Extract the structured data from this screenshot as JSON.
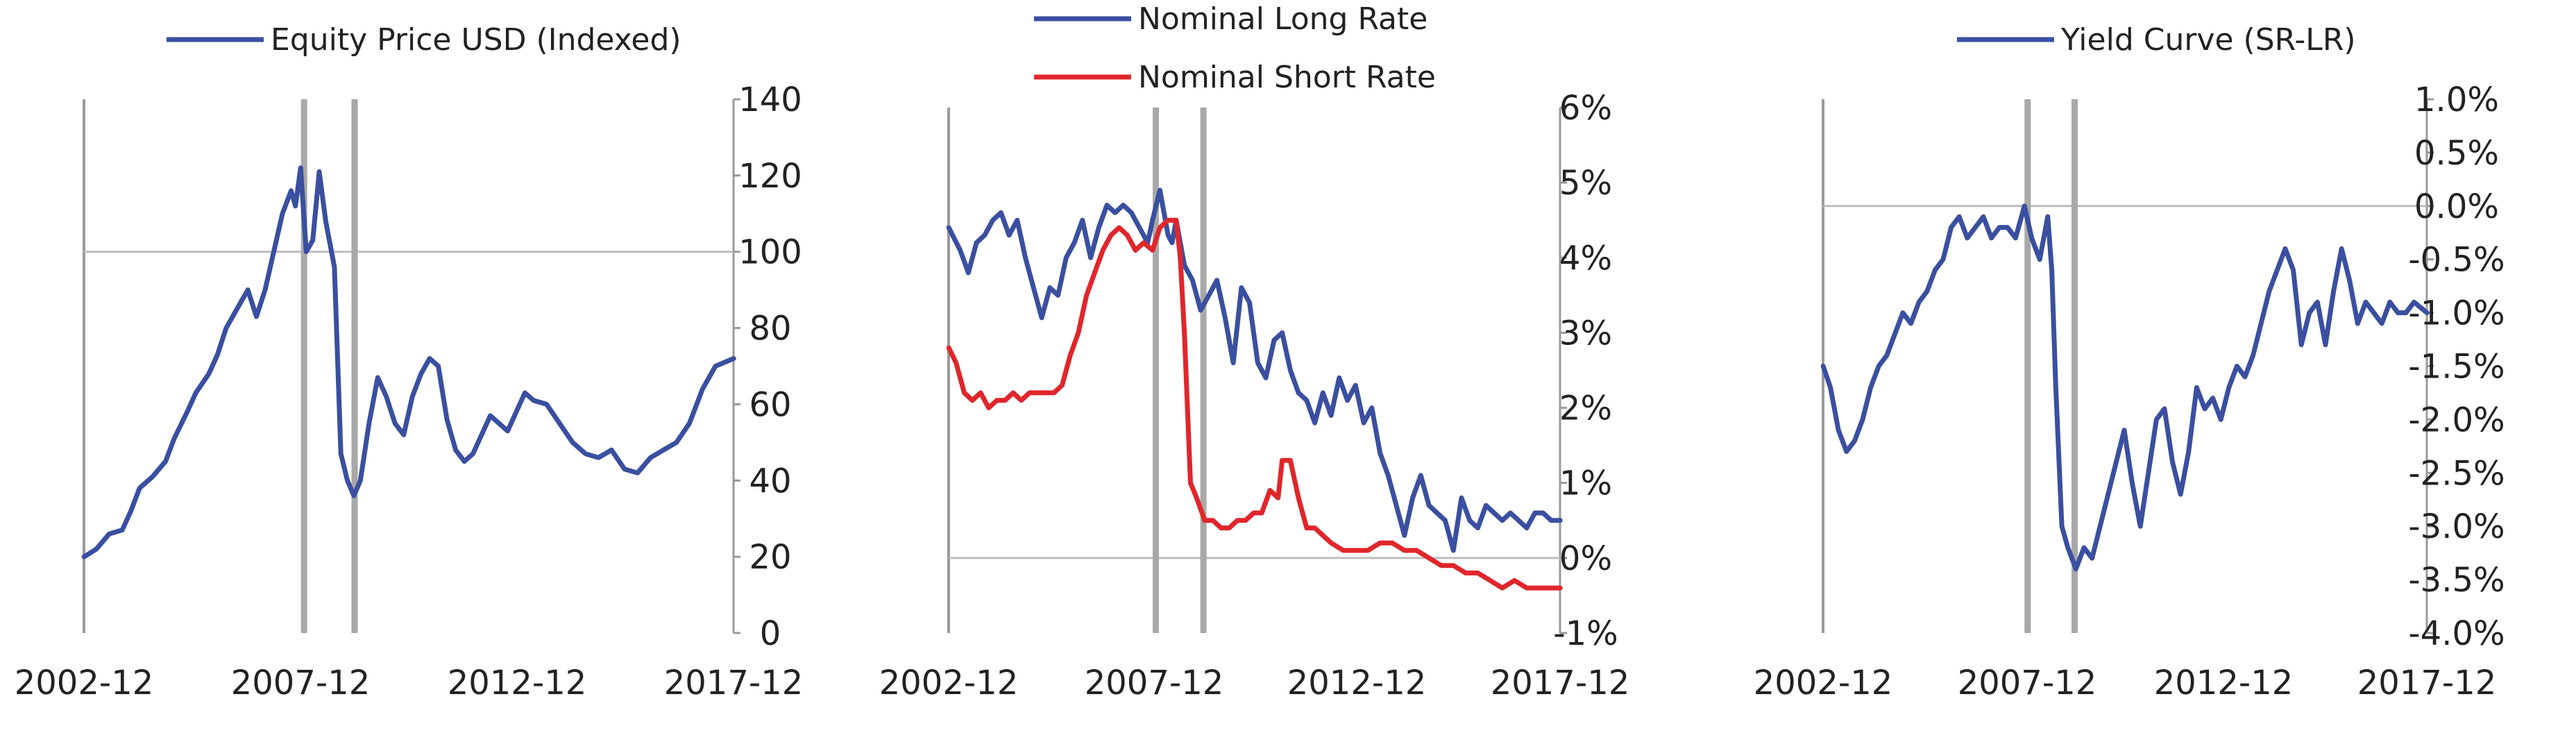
{
  "colors": {
    "blue": "#3a4fa0",
    "red": "#e0262b",
    "axis": "#9a9a9a",
    "event": "#a8a8a8",
    "grid": "#bdbdbd"
  },
  "chart_data": [
    {
      "type": "line",
      "legend": [
        {
          "name": "Equity Price USD (Indexed)",
          "color": "#3a4fa0"
        }
      ],
      "legend_position": "top",
      "xlim": [
        2002.917,
        2017.917
      ],
      "xticks": [
        "2002-12",
        "2007-12",
        "2012-12",
        "2017-12"
      ],
      "ylim": [
        0,
        140
      ],
      "yticks": [
        "0",
        "20",
        "40",
        "60",
        "80",
        "100",
        "120",
        "140"
      ],
      "y_axis_side": "right",
      "reference_lines": [
        100
      ],
      "event_lines": [
        "2008-01",
        "2009-03"
      ],
      "series": [
        {
          "name": "Equity Price USD (Indexed)",
          "color": "#3a4fa0",
          "x": [
            2002.92,
            2003.2,
            2003.5,
            2003.8,
            2004.0,
            2004.2,
            2004.5,
            2004.8,
            2005.0,
            2005.3,
            2005.5,
            2005.8,
            2006.0,
            2006.2,
            2006.5,
            2006.7,
            2006.9,
            2007.1,
            2007.3,
            2007.5,
            2007.7,
            2007.8,
            2007.92,
            2008.05,
            2008.2,
            2008.35,
            2008.5,
            2008.7,
            2008.85,
            2009.0,
            2009.15,
            2009.3,
            2009.5,
            2009.7,
            2009.9,
            2010.1,
            2010.3,
            2010.5,
            2010.7,
            2010.9,
            2011.1,
            2011.3,
            2011.5,
            2011.7,
            2011.9,
            2012.1,
            2012.3,
            2012.5,
            2012.7,
            2012.9,
            2013.1,
            2013.3,
            2013.6,
            2013.9,
            2014.2,
            2014.5,
            2014.8,
            2015.1,
            2015.4,
            2015.7,
            2016.0,
            2016.3,
            2016.6,
            2016.9,
            2017.2,
            2017.5,
            2017.92
          ],
          "y": [
            20,
            22,
            26,
            27,
            32,
            38,
            41,
            45,
            51,
            58,
            63,
            68,
            73,
            80,
            86,
            90,
            83,
            90,
            100,
            110,
            116,
            112,
            122,
            100,
            103,
            121,
            108,
            96,
            47,
            40,
            36,
            40,
            55,
            67,
            62,
            55,
            52,
            62,
            68,
            72,
            70,
            56,
            48,
            45,
            47,
            52,
            57,
            55,
            53,
            58,
            63,
            61,
            60,
            55,
            50,
            47,
            46,
            48,
            43,
            42,
            46,
            48,
            50,
            55,
            64,
            70,
            72
          ]
        }
      ]
    },
    {
      "type": "line",
      "legend": [
        {
          "name": "Nominal Long Rate",
          "color": "#3a4fa0"
        },
        {
          "name": "Nominal Short Rate",
          "color": "#e0262b"
        }
      ],
      "legend_position": "top",
      "xlim": [
        2002.917,
        2017.917
      ],
      "xticks": [
        "2002-12",
        "2007-12",
        "2012-12",
        "2017-12"
      ],
      "ylim": [
        -1,
        6
      ],
      "yticks": [
        "-1%",
        "0%",
        "1%",
        "2%",
        "3%",
        "4%",
        "5%",
        "6%"
      ],
      "y_axis_side": "right",
      "reference_lines": [
        0
      ],
      "event_lines": [
        "2008-01",
        "2009-03"
      ],
      "series": [
        {
          "name": "Nominal Long Rate",
          "color": "#3a4fa0",
          "x": [
            2002.92,
            2003.2,
            2003.4,
            2003.6,
            2003.8,
            2004.0,
            2004.2,
            2004.4,
            2004.6,
            2004.8,
            2005.0,
            2005.2,
            2005.4,
            2005.6,
            2005.8,
            2006.0,
            2006.2,
            2006.4,
            2006.6,
            2006.8,
            2007.0,
            2007.2,
            2007.4,
            2007.6,
            2007.8,
            2007.92,
            2008.1,
            2008.3,
            2008.4,
            2008.5,
            2008.7,
            2008.9,
            2009.1,
            2009.3,
            2009.5,
            2009.7,
            2009.9,
            2010.1,
            2010.3,
            2010.5,
            2010.7,
            2010.9,
            2011.1,
            2011.3,
            2011.5,
            2011.7,
            2011.9,
            2012.1,
            2012.3,
            2012.5,
            2012.7,
            2012.9,
            2013.1,
            2013.3,
            2013.5,
            2013.7,
            2013.9,
            2014.1,
            2014.3,
            2014.5,
            2014.7,
            2014.9,
            2015.1,
            2015.3,
            2015.5,
            2015.7,
            2015.9,
            2016.1,
            2016.3,
            2016.5,
            2016.7,
            2016.9,
            2017.1,
            2017.3,
            2017.5,
            2017.7,
            2017.92
          ],
          "y": [
            4.4,
            4.1,
            3.8,
            4.2,
            4.3,
            4.5,
            4.6,
            4.3,
            4.5,
            4.0,
            3.6,
            3.2,
            3.6,
            3.5,
            4.0,
            4.2,
            4.5,
            4.0,
            4.4,
            4.7,
            4.6,
            4.7,
            4.6,
            4.4,
            4.2,
            4.5,
            4.9,
            4.3,
            4.2,
            4.5,
            3.9,
            3.7,
            3.3,
            3.5,
            3.7,
            3.2,
            2.6,
            3.6,
            3.4,
            2.6,
            2.4,
            2.9,
            3.0,
            2.5,
            2.2,
            2.1,
            1.8,
            2.2,
            1.9,
            2.4,
            2.1,
            2.3,
            1.8,
            2.0,
            1.4,
            1.1,
            0.7,
            0.3,
            0.8,
            1.1,
            0.7,
            0.6,
            0.5,
            0.1,
            0.8,
            0.5,
            0.4,
            0.7,
            0.6,
            0.5,
            0.6,
            0.5,
            0.4,
            0.6,
            0.6,
            0.5,
            0.5
          ]
        },
        {
          "name": "Nominal Short Rate",
          "color": "#e0262b",
          "x": [
            2002.92,
            2003.1,
            2003.3,
            2003.5,
            2003.7,
            2003.9,
            2004.1,
            2004.3,
            2004.5,
            2004.7,
            2004.9,
            2005.1,
            2005.3,
            2005.5,
            2005.7,
            2005.9,
            2006.1,
            2006.3,
            2006.5,
            2006.7,
            2006.9,
            2007.1,
            2007.3,
            2007.5,
            2007.7,
            2007.92,
            2008.1,
            2008.3,
            2008.5,
            2008.6,
            2008.7,
            2008.85,
            2009.0,
            2009.2,
            2009.4,
            2009.6,
            2009.8,
            2010.0,
            2010.2,
            2010.4,
            2010.6,
            2010.8,
            2011.0,
            2011.1,
            2011.3,
            2011.5,
            2011.7,
            2011.9,
            2012.1,
            2012.3,
            2012.6,
            2012.9,
            2013.2,
            2013.5,
            2013.8,
            2014.1,
            2014.4,
            2014.7,
            2015.0,
            2015.3,
            2015.6,
            2015.9,
            2016.2,
            2016.5,
            2016.8,
            2017.1,
            2017.4,
            2017.7,
            2017.92
          ],
          "y": [
            2.8,
            2.6,
            2.2,
            2.1,
            2.2,
            2.0,
            2.1,
            2.1,
            2.2,
            2.1,
            2.2,
            2.2,
            2.2,
            2.2,
            2.3,
            2.7,
            3.0,
            3.5,
            3.8,
            4.1,
            4.3,
            4.4,
            4.3,
            4.1,
            4.2,
            4.1,
            4.4,
            4.5,
            4.5,
            4.0,
            3.0,
            1.0,
            0.8,
            0.5,
            0.5,
            0.4,
            0.4,
            0.5,
            0.5,
            0.6,
            0.6,
            0.9,
            0.8,
            1.3,
            1.3,
            0.8,
            0.4,
            0.4,
            0.3,
            0.2,
            0.1,
            0.1,
            0.1,
            0.2,
            0.2,
            0.1,
            0.1,
            0.0,
            -0.1,
            -0.1,
            -0.2,
            -0.2,
            -0.3,
            -0.4,
            -0.3,
            -0.4,
            -0.4,
            -0.4,
            -0.4
          ]
        }
      ]
    },
    {
      "type": "line",
      "legend": [
        {
          "name": "Yield Curve (SR-LR)",
          "color": "#3a4fa0"
        }
      ],
      "legend_position": "top",
      "xlim": [
        2002.917,
        2017.917
      ],
      "xticks": [
        "2002-12",
        "2007-12",
        "2012-12",
        "2017-12"
      ],
      "ylim": [
        -4.0,
        1.0
      ],
      "yticks": [
        "-4.0%",
        "-3.5%",
        "-3.0%",
        "-2.5%",
        "-2.0%",
        "-1.5%",
        "-1.0%",
        "-0.5%",
        "0.0%",
        "0.5%",
        "1.0%"
      ],
      "y_axis_side": "right",
      "reference_lines": [
        0
      ],
      "event_lines": [
        "2008-01",
        "2009-03"
      ],
      "series": [
        {
          "name": "Yield Curve (SR-LR)",
          "color": "#3a4fa0",
          "x": [
            2002.92,
            2003.1,
            2003.3,
            2003.5,
            2003.7,
            2003.9,
            2004.1,
            2004.3,
            2004.5,
            2004.7,
            2004.9,
            2005.1,
            2005.3,
            2005.5,
            2005.7,
            2005.9,
            2006.1,
            2006.3,
            2006.5,
            2006.7,
            2006.9,
            2007.1,
            2007.3,
            2007.5,
            2007.7,
            2007.92,
            2008.1,
            2008.3,
            2008.5,
            2008.6,
            2008.7,
            2008.85,
            2009.0,
            2009.2,
            2009.4,
            2009.6,
            2009.8,
            2010.0,
            2010.2,
            2010.4,
            2010.6,
            2010.8,
            2011.0,
            2011.2,
            2011.4,
            2011.6,
            2011.8,
            2012.0,
            2012.2,
            2012.4,
            2012.6,
            2012.8,
            2013.0,
            2013.2,
            2013.4,
            2013.6,
            2013.8,
            2014.0,
            2014.2,
            2014.4,
            2014.6,
            2014.8,
            2015.0,
            2015.2,
            2015.4,
            2015.6,
            2015.8,
            2016.0,
            2016.2,
            2016.4,
            2016.6,
            2016.8,
            2017.0,
            2017.2,
            2017.4,
            2017.6,
            2017.92
          ],
          "y": [
            -1.5,
            -1.7,
            -2.1,
            -2.3,
            -2.2,
            -2.0,
            -1.7,
            -1.5,
            -1.4,
            -1.2,
            -1.0,
            -1.1,
            -0.9,
            -0.8,
            -0.6,
            -0.5,
            -0.2,
            -0.1,
            -0.3,
            -0.2,
            -0.1,
            -0.3,
            -0.2,
            -0.2,
            -0.3,
            0.0,
            -0.3,
            -0.5,
            -0.1,
            -0.6,
            -1.7,
            -3.0,
            -3.2,
            -3.4,
            -3.2,
            -3.3,
            -3.0,
            -2.7,
            -2.4,
            -2.1,
            -2.6,
            -3.0,
            -2.5,
            -2.0,
            -1.9,
            -2.4,
            -2.7,
            -2.3,
            -1.7,
            -1.9,
            -1.8,
            -2.0,
            -1.7,
            -1.5,
            -1.6,
            -1.4,
            -1.1,
            -0.8,
            -0.6,
            -0.4,
            -0.6,
            -1.3,
            -1.0,
            -0.9,
            -1.3,
            -0.8,
            -0.4,
            -0.7,
            -1.1,
            -0.9,
            -1.0,
            -1.1,
            -0.9,
            -1.0,
            -1.0,
            -0.9,
            -1.0
          ]
        }
      ]
    }
  ]
}
